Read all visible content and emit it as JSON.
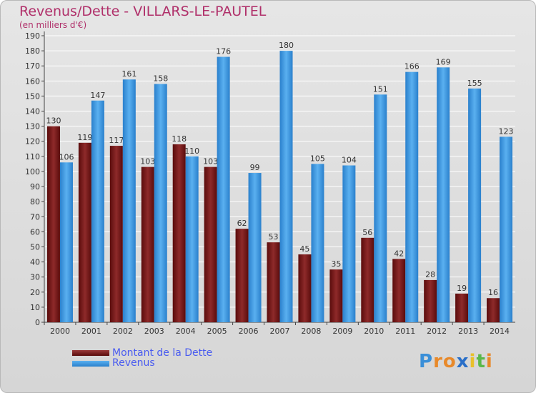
{
  "chart_data": {
    "type": "bar",
    "title": "Revenus/Dette - VILLARS-LE-PAUTEL",
    "subtitle": "(en milliers d'€)",
    "categories": [
      "2000",
      "2001",
      "2002",
      "2003",
      "2004",
      "2005",
      "2006",
      "2007",
      "2008",
      "2009",
      "2010",
      "2011",
      "2012",
      "2013",
      "2014"
    ],
    "series": [
      {
        "name": "Montant de la Dette",
        "color": "#7a1c1c",
        "values": [
          130,
          119,
          117,
          103,
          118,
          103,
          62,
          53,
          45,
          35,
          56,
          42,
          28,
          19,
          16
        ]
      },
      {
        "name": "Revenus",
        "color": "#3a95e0",
        "values": [
          106,
          147,
          161,
          158,
          110,
          176,
          99,
          180,
          105,
          104,
          151,
          166,
          169,
          155,
          123
        ]
      }
    ],
    "yticks": [
      0,
      10,
      20,
      30,
      40,
      50,
      60,
      70,
      80,
      90,
      100,
      110,
      120,
      130,
      140,
      150,
      160,
      170,
      180,
      190
    ],
    "ylim": [
      0,
      190
    ],
    "grid": true,
    "legend": "bottom-left"
  },
  "logo": {
    "letters": [
      "P",
      "r",
      "o",
      "x",
      "i",
      "t",
      "i"
    ],
    "colors": [
      "#3a8fd8",
      "#e8892a",
      "#e8892a",
      "#2a6fc8",
      "#e8c02a",
      "#5ab84a",
      "#e8892a"
    ]
  }
}
